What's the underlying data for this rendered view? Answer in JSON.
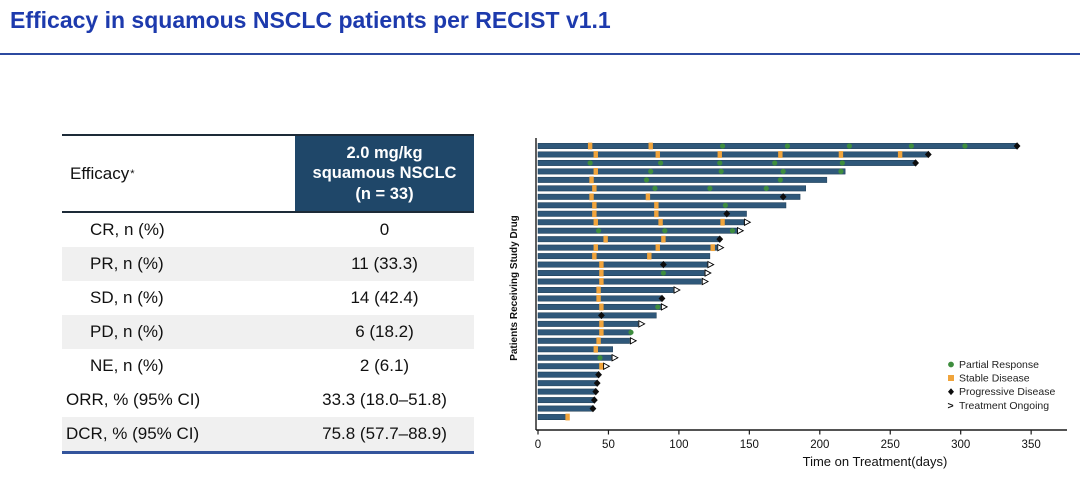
{
  "title": "Efficacy in squamous NSCLC patients per RECIST v1.1",
  "accent_colors": {
    "title_blue": "#1d3aad",
    "divider_blue": "#2c4aa0",
    "table_header_bg": "#1f4769",
    "table_row_shade": "#f0f0f0",
    "table_bottom_border": "#33549c"
  },
  "table": {
    "header": {
      "label": "Efficacy",
      "label_sup": "*",
      "col_lines": [
        "2.0 mg/kg",
        "squamous NSCLC",
        "(n = 33)"
      ]
    },
    "rows": [
      {
        "key": "cr",
        "label": "CR, n (%)",
        "value": "0",
        "shaded": false,
        "indent": true
      },
      {
        "key": "pr",
        "label": "PR, n (%)",
        "value": "11 (33.3)",
        "shaded": true,
        "indent": true
      },
      {
        "key": "sd",
        "label": "SD, n (%)",
        "value": "14 (42.4)",
        "shaded": false,
        "indent": true
      },
      {
        "key": "pd",
        "label": "PD, n (%)",
        "value": "6 (18.2)",
        "shaded": true,
        "indent": true
      },
      {
        "key": "ne",
        "label": "NE, n (%)",
        "value": "2 (6.1)",
        "shaded": false,
        "indent": true
      },
      {
        "key": "orr",
        "label": "ORR, % (95% CI)",
        "value": "33.3 (18.0–51.8)",
        "shaded": false,
        "indent": false
      },
      {
        "key": "dcr",
        "label": "DCR, % (95% CI)",
        "value": "75.8 (57.7–88.9)",
        "shaded": true,
        "indent": false
      }
    ]
  },
  "chart_data": {
    "type": "bar",
    "subtype": "swimmer-plot",
    "title": "",
    "xlabel": "Time on Treatment(days)",
    "ylabel": "Patients Receiving Study Drug",
    "xlim": [
      0,
      360
    ],
    "x_ticks": [
      0,
      50,
      100,
      150,
      200,
      250,
      300,
      350
    ],
    "grid": false,
    "legend_position": "right-bottom",
    "legend": [
      {
        "label": "Partial Response",
        "marker": "pr"
      },
      {
        "label": "Stable Disease",
        "marker": "sd"
      },
      {
        "label": "Progressive Disease",
        "marker": "pd"
      },
      {
        "label": "Treatment Ongoing",
        "marker": "ongoing"
      }
    ],
    "colors": {
      "bar": "#2f587a",
      "bar_edge": "#1d3b52",
      "pr": "#3e8d3e",
      "sd": "#f0a43c",
      "pd": "#0d0d0d",
      "axis": "#1a1a1a"
    },
    "patients": [
      {
        "days": 340,
        "ongoing": false,
        "events": [
          [
            "sd",
            37
          ],
          [
            "sd",
            80
          ],
          [
            "pr",
            131
          ],
          [
            "pr",
            177
          ],
          [
            "pr",
            221
          ],
          [
            "pr",
            265
          ],
          [
            "pr",
            303
          ],
          [
            "pd",
            340
          ]
        ]
      },
      {
        "days": 277,
        "ongoing": false,
        "events": [
          [
            "sd",
            41
          ],
          [
            "sd",
            85
          ],
          [
            "sd",
            129
          ],
          [
            "sd",
            172
          ],
          [
            "sd",
            215
          ],
          [
            "sd",
            257
          ],
          [
            "pd",
            277
          ]
        ]
      },
      {
        "days": 268,
        "ongoing": false,
        "events": [
          [
            "pr",
            37
          ],
          [
            "pr",
            87
          ],
          [
            "pr",
            129
          ],
          [
            "pr",
            168
          ],
          [
            "pr",
            216
          ],
          [
            "pd",
            268
          ]
        ]
      },
      {
        "days": 218,
        "ongoing": false,
        "events": [
          [
            "sd",
            41
          ],
          [
            "pr",
            80
          ],
          [
            "pr",
            130
          ],
          [
            "pr",
            174
          ],
          [
            "pr",
            215
          ]
        ]
      },
      {
        "days": 205,
        "ongoing": false,
        "events": [
          [
            "sd",
            38
          ],
          [
            "pr",
            77
          ],
          [
            "pr",
            172
          ]
        ]
      },
      {
        "days": 190,
        "ongoing": false,
        "events": [
          [
            "sd",
            40
          ],
          [
            "pr",
            83
          ],
          [
            "pr",
            122
          ],
          [
            "pr",
            162
          ]
        ]
      },
      {
        "days": 186,
        "ongoing": false,
        "events": [
          [
            "sd",
            38
          ],
          [
            "sd",
            78
          ],
          [
            "pd",
            174
          ]
        ]
      },
      {
        "days": 176,
        "ongoing": false,
        "events": [
          [
            "sd",
            40
          ],
          [
            "sd",
            84
          ],
          [
            "pr",
            133
          ]
        ]
      },
      {
        "days": 148,
        "ongoing": false,
        "events": [
          [
            "sd",
            40
          ],
          [
            "sd",
            84
          ],
          [
            "pd",
            134
          ]
        ]
      },
      {
        "days": 146,
        "ongoing": true,
        "events": [
          [
            "sd",
            41
          ],
          [
            "sd",
            87
          ],
          [
            "sd",
            131
          ]
        ]
      },
      {
        "days": 141,
        "ongoing": true,
        "events": [
          [
            "pr",
            43
          ],
          [
            "pr",
            90
          ],
          [
            "pr",
            138
          ]
        ]
      },
      {
        "days": 129,
        "ongoing": false,
        "events": [
          [
            "sd",
            48
          ],
          [
            "sd",
            89
          ],
          [
            "pd",
            129
          ]
        ]
      },
      {
        "days": 127,
        "ongoing": true,
        "events": [
          [
            "sd",
            41
          ],
          [
            "sd",
            85
          ],
          [
            "sd",
            124
          ]
        ]
      },
      {
        "days": 122,
        "ongoing": false,
        "events": [
          [
            "sd",
            40
          ],
          [
            "sd",
            79
          ]
        ]
      },
      {
        "days": 120,
        "ongoing": true,
        "events": [
          [
            "sd",
            45
          ],
          [
            "pd",
            89
          ]
        ]
      },
      {
        "days": 118,
        "ongoing": true,
        "events": [
          [
            "sd",
            45
          ],
          [
            "pr",
            89
          ]
        ]
      },
      {
        "days": 116,
        "ongoing": true,
        "events": [
          [
            "sd",
            45
          ]
        ]
      },
      {
        "days": 96,
        "ongoing": true,
        "events": [
          [
            "sd",
            43
          ]
        ]
      },
      {
        "days": 88,
        "ongoing": false,
        "events": [
          [
            "sd",
            43
          ],
          [
            "pd",
            88
          ]
        ]
      },
      {
        "days": 87,
        "ongoing": true,
        "events": [
          [
            "sd",
            45
          ],
          [
            "pr",
            85
          ]
        ]
      },
      {
        "days": 84,
        "ongoing": false,
        "events": [
          [
            "pd",
            45
          ]
        ]
      },
      {
        "days": 71,
        "ongoing": true,
        "events": [
          [
            "sd",
            45
          ]
        ]
      },
      {
        "days": 66,
        "ongoing": false,
        "events": [
          [
            "sd",
            45
          ],
          [
            "pr",
            66
          ]
        ]
      },
      {
        "days": 65,
        "ongoing": true,
        "events": [
          [
            "sd",
            43
          ]
        ]
      },
      {
        "days": 53,
        "ongoing": false,
        "events": [
          [
            "sd",
            41
          ]
        ]
      },
      {
        "days": 52,
        "ongoing": true,
        "events": [
          [
            "pr",
            44
          ]
        ]
      },
      {
        "days": 46,
        "ongoing": true,
        "events": [
          [
            "sd",
            45
          ]
        ]
      },
      {
        "days": 43,
        "ongoing": false,
        "events": [
          [
            "pd",
            43
          ]
        ]
      },
      {
        "days": 42,
        "ongoing": false,
        "events": [
          [
            "pd",
            42
          ]
        ]
      },
      {
        "days": 41,
        "ongoing": false,
        "events": [
          [
            "pd",
            41
          ]
        ]
      },
      {
        "days": 40,
        "ongoing": false,
        "events": [
          [
            "pd",
            40
          ]
        ]
      },
      {
        "days": 39,
        "ongoing": false,
        "events": [
          [
            "pd",
            39
          ]
        ]
      },
      {
        "days": 21,
        "ongoing": false,
        "events": [
          [
            "sd",
            21
          ]
        ]
      }
    ]
  }
}
